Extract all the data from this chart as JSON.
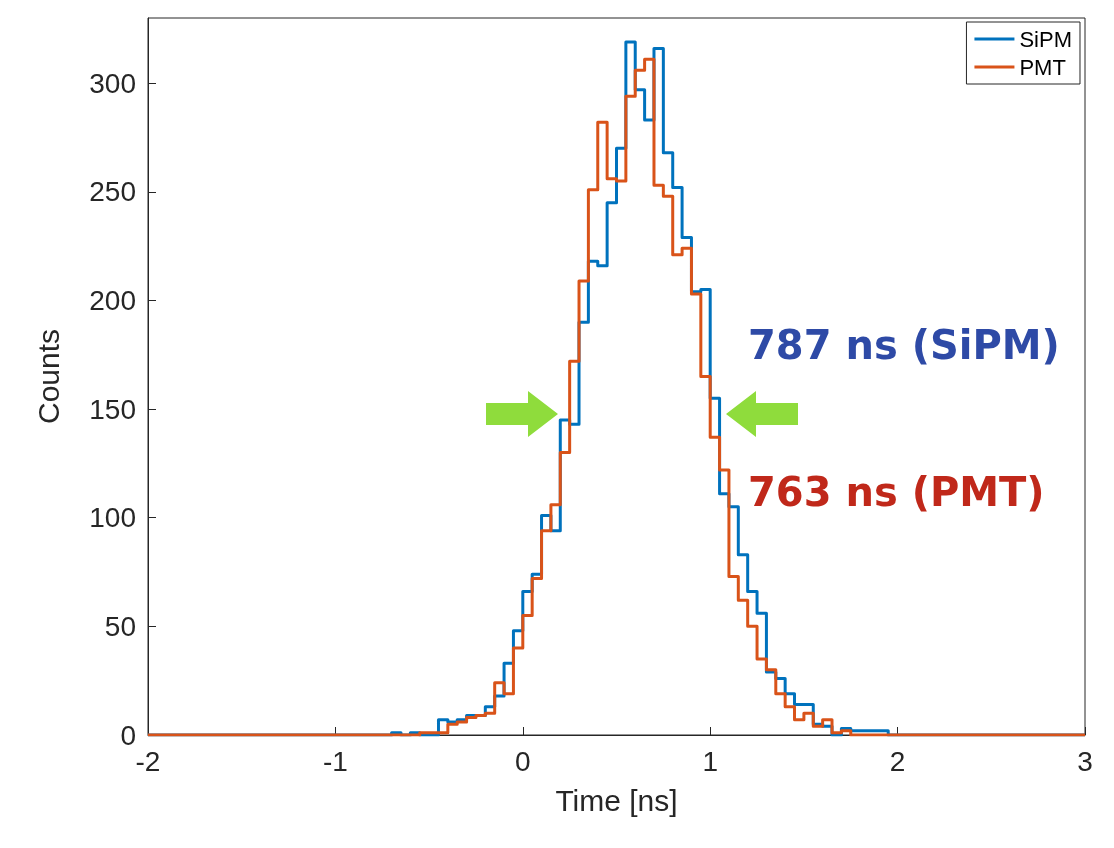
{
  "chart_data": {
    "type": "histogram",
    "xlabel": "Time [ns]",
    "ylabel": "Counts",
    "bins": [
      -2,
      -0.7,
      -0.65,
      -0.6,
      -0.55,
      -0.5,
      -0.45,
      -0.4,
      -0.35,
      -0.3,
      -0.25,
      -0.2,
      -0.15,
      -0.1,
      -0.05,
      0,
      0.05,
      0.1,
      0.15,
      0.2,
      0.25,
      0.3,
      0.35,
      0.4,
      0.45,
      0.5,
      0.55,
      0.6,
      0.65,
      0.7,
      0.75,
      0.8,
      0.85,
      0.9,
      0.95,
      1,
      1.05,
      1.1,
      1.15,
      1.2,
      1.25,
      1.3,
      1.35,
      1.4,
      1.45,
      1.5,
      1.55,
      1.6,
      1.65,
      1.7,
      1.75,
      1.8,
      1.85,
      1.9,
      1.95,
      2,
      3
    ],
    "series": [
      {
        "name": "SiPM",
        "color": "#0072bd",
        "values": [
          0,
          1,
          0,
          1,
          0,
          0,
          7,
          6,
          7,
          9,
          9,
          13,
          18,
          33,
          48,
          66,
          74,
          101,
          94,
          145,
          143,
          190,
          218,
          216,
          245,
          270,
          319,
          297,
          283,
          316,
          268,
          252,
          229,
          204,
          205,
          155,
          111,
          105,
          83,
          66,
          56,
          29,
          26,
          19,
          14,
          14,
          5,
          4,
          0,
          3,
          2,
          2,
          2,
          2,
          0,
          0
        ]
      },
      {
        "name": "PMT",
        "color": "#d95319",
        "values": [
          0,
          0,
          0,
          0,
          1,
          1,
          1,
          5,
          6,
          8,
          9,
          10,
          24,
          19,
          40,
          55,
          72,
          94,
          106,
          130,
          172,
          209,
          251,
          282,
          256,
          255,
          294,
          306,
          311,
          253,
          248,
          221,
          224,
          203,
          165,
          137,
          122,
          73,
          62,
          50,
          35,
          30,
          19,
          13,
          7,
          10,
          4,
          7,
          1,
          2,
          0,
          0,
          0,
          0,
          0,
          0
        ]
      }
    ],
    "xlim": [
      -2,
      3
    ],
    "xticks": [
      -2,
      -1,
      0,
      1,
      2,
      3
    ],
    "ylim": [
      0,
      330
    ],
    "yticks": [
      0,
      50,
      100,
      150,
      200,
      250,
      300
    ],
    "grid": false,
    "legend": "top right",
    "annotations": [
      "787 ns (SiPM)",
      "763 ns (PMT)"
    ]
  }
}
